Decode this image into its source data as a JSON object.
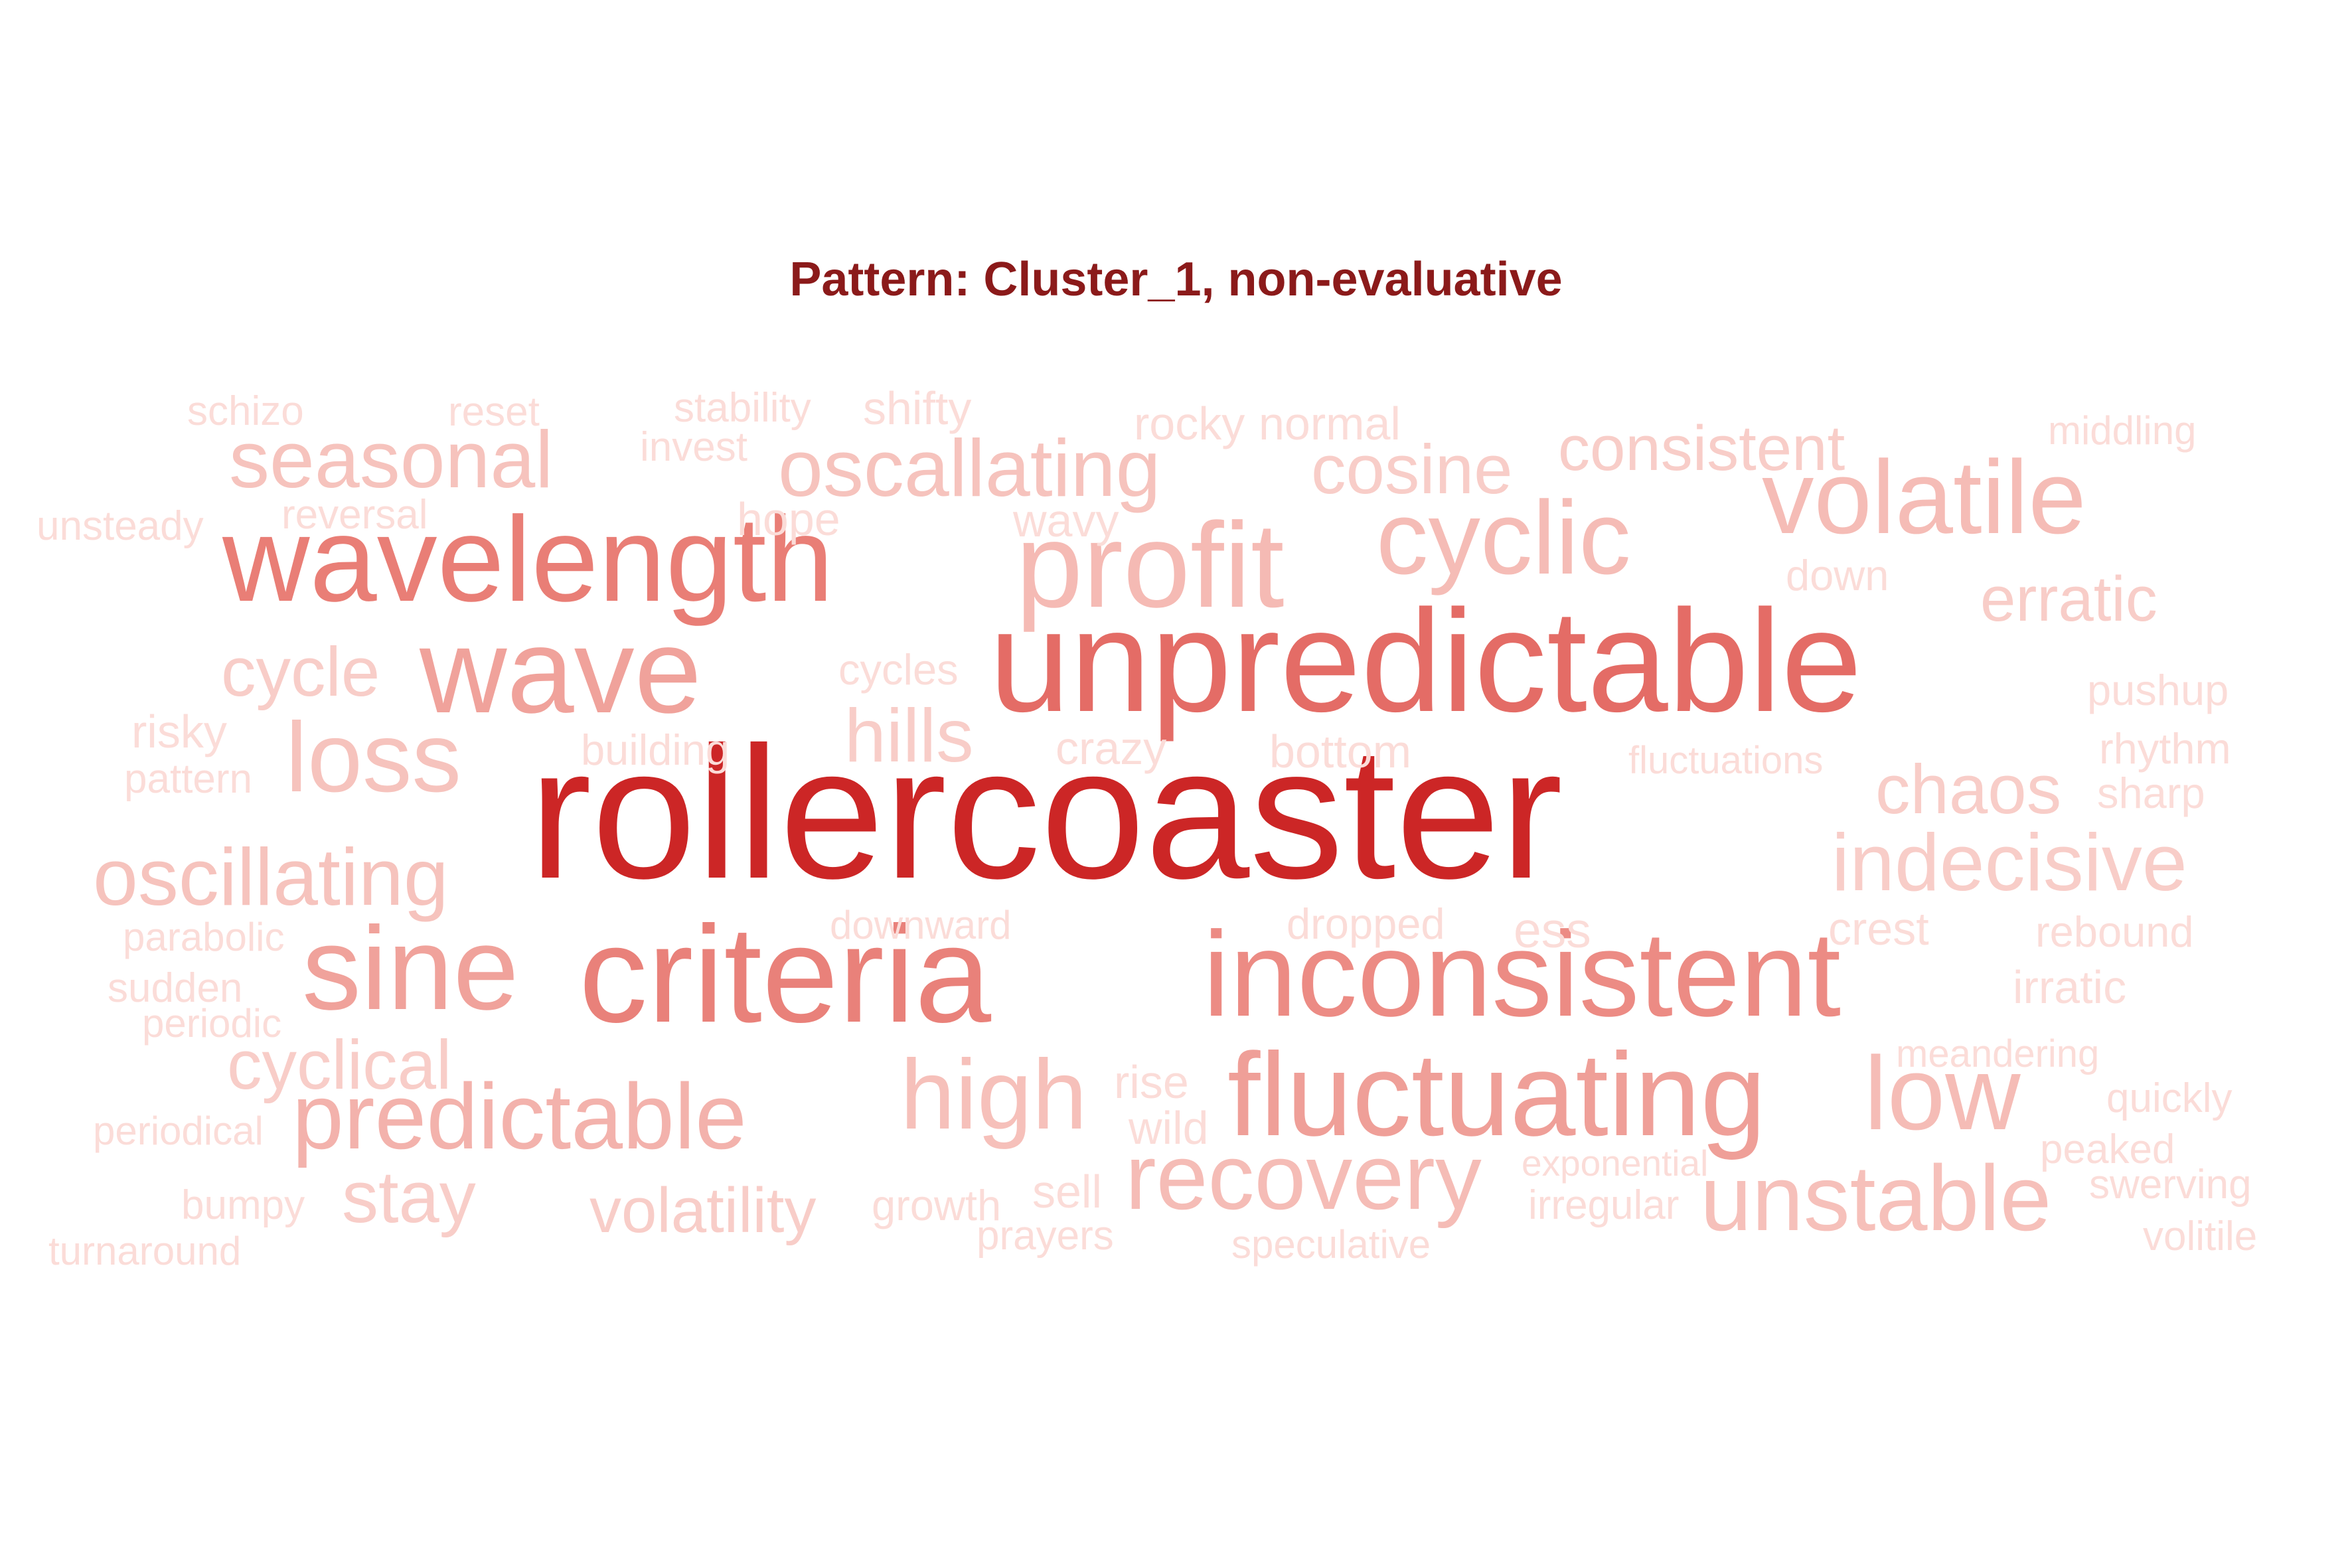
{
  "title": "Pattern: Cluster_1, non-evaluative",
  "words": [
    {
      "text": "rollercoaster",
      "color": "#cc2626"
    },
    {
      "text": "unpredictable",
      "color": "#e46c66"
    },
    {
      "text": "criteria",
      "color": "#e9817a"
    },
    {
      "text": "wavelength",
      "color": "#e97e76"
    },
    {
      "text": "inconsistent",
      "color": "#ec8b84"
    },
    {
      "text": "wave",
      "color": "#f0a29b"
    },
    {
      "text": "fluctuating",
      "color": "#ef9f98"
    },
    {
      "text": "sine",
      "color": "#f0a29b"
    },
    {
      "text": "predictable",
      "color": "#f3b2ac"
    },
    {
      "text": "profit",
      "color": "#f5bab4"
    },
    {
      "text": "cyclic",
      "color": "#f5bcb6"
    },
    {
      "text": "volatile",
      "color": "#f5bcb6"
    },
    {
      "text": "unstable",
      "color": "#f6c0ba"
    },
    {
      "text": "recovery",
      "color": "#f5bcb6"
    },
    {
      "text": "low",
      "color": "#f5bcb6"
    },
    {
      "text": "high",
      "color": "#f6c0ba"
    },
    {
      "text": "loss",
      "color": "#f6c3bd"
    },
    {
      "text": "indecisive",
      "color": "#f8cdc8"
    },
    {
      "text": "seasonal",
      "color": "#f6c3bd"
    },
    {
      "text": "oscallating",
      "color": "#f6c3bd"
    },
    {
      "text": "oscillating",
      "color": "#f6c3bd"
    },
    {
      "text": "chaos",
      "color": "#f8cdc8"
    },
    {
      "text": "cosine",
      "color": "#f8cdc8"
    },
    {
      "text": "consistent",
      "color": "#f8cdc8"
    },
    {
      "text": "erratic",
      "color": "#f8cdc8"
    },
    {
      "text": "cycle",
      "color": "#f8cdc8"
    },
    {
      "text": "stay",
      "color": "#f8cdc8"
    },
    {
      "text": "hills",
      "color": "#f8cdc8"
    },
    {
      "text": "cyclical",
      "color": "#f8cdc8"
    },
    {
      "text": "volatility",
      "color": "#f8cdc8"
    },
    {
      "text": "schizo",
      "color": "#fbdcd8"
    },
    {
      "text": "reset",
      "color": "#fbdcd8"
    },
    {
      "text": "stability",
      "color": "#fbdcd8"
    },
    {
      "text": "shifty",
      "color": "#fbdcd8"
    },
    {
      "text": "rocky",
      "color": "#fbdcd8"
    },
    {
      "text": "normal",
      "color": "#fbdcd8"
    },
    {
      "text": "middling",
      "color": "#fbdcd8"
    },
    {
      "text": "invest",
      "color": "#fbdcd8"
    },
    {
      "text": "unsteady",
      "color": "#fbdcd8"
    },
    {
      "text": "reversal",
      "color": "#fbdcd8"
    },
    {
      "text": "hope",
      "color": "#fbdcd8"
    },
    {
      "text": "wavy",
      "color": "#fbdcd8"
    },
    {
      "text": "down",
      "color": "#fbdcd8"
    },
    {
      "text": "pushup",
      "color": "#fbdcd8"
    },
    {
      "text": "risky",
      "color": "#fbdcd8"
    },
    {
      "text": "cycles",
      "color": "#fbdcd8"
    },
    {
      "text": "building",
      "color": "#fbdcd8"
    },
    {
      "text": "crazy",
      "color": "#fbdcd8"
    },
    {
      "text": "bottom",
      "color": "#fbdcd8"
    },
    {
      "text": "rhythm",
      "color": "#fbdcd8"
    },
    {
      "text": "pattern",
      "color": "#fbdcd8"
    },
    {
      "text": "fluctuations",
      "color": "#fbdcd8"
    },
    {
      "text": "sharp",
      "color": "#fbdcd8"
    },
    {
      "text": "downward",
      "color": "#fbdcd8"
    },
    {
      "text": "dropped",
      "color": "#fbdcd8"
    },
    {
      "text": "ess",
      "color": "#fbdcd8"
    },
    {
      "text": "crest",
      "color": "#fbdcd8"
    },
    {
      "text": "rebound",
      "color": "#fbdcd8"
    },
    {
      "text": "parabolic",
      "color": "#fbdcd8"
    },
    {
      "text": "sudden",
      "color": "#fbdcd8"
    },
    {
      "text": "irratic",
      "color": "#fbdcd8"
    },
    {
      "text": "periodic",
      "color": "#fbdcd8"
    },
    {
      "text": "meandering",
      "color": "#fbdcd8"
    },
    {
      "text": "rise",
      "color": "#fbdcd8"
    },
    {
      "text": "quickly",
      "color": "#fbdcd8"
    },
    {
      "text": "periodical",
      "color": "#fbdcd8"
    },
    {
      "text": "wild",
      "color": "#fbdcd8"
    },
    {
      "text": "peaked",
      "color": "#fbdcd8"
    },
    {
      "text": "exponential",
      "color": "#fbdcd8"
    },
    {
      "text": "sell",
      "color": "#fbdcd8"
    },
    {
      "text": "swerving",
      "color": "#fbdcd8"
    },
    {
      "text": "bumpy",
      "color": "#fbdcd8"
    },
    {
      "text": "growth",
      "color": "#fbdcd8"
    },
    {
      "text": "irregular",
      "color": "#fbdcd8"
    },
    {
      "text": "prayers",
      "color": "#fbdcd8"
    },
    {
      "text": "volitile",
      "color": "#fbdcd8"
    },
    {
      "text": "turnaround",
      "color": "#fbdcd8"
    },
    {
      "text": "speculative",
      "color": "#fbdcd8"
    }
  ]
}
